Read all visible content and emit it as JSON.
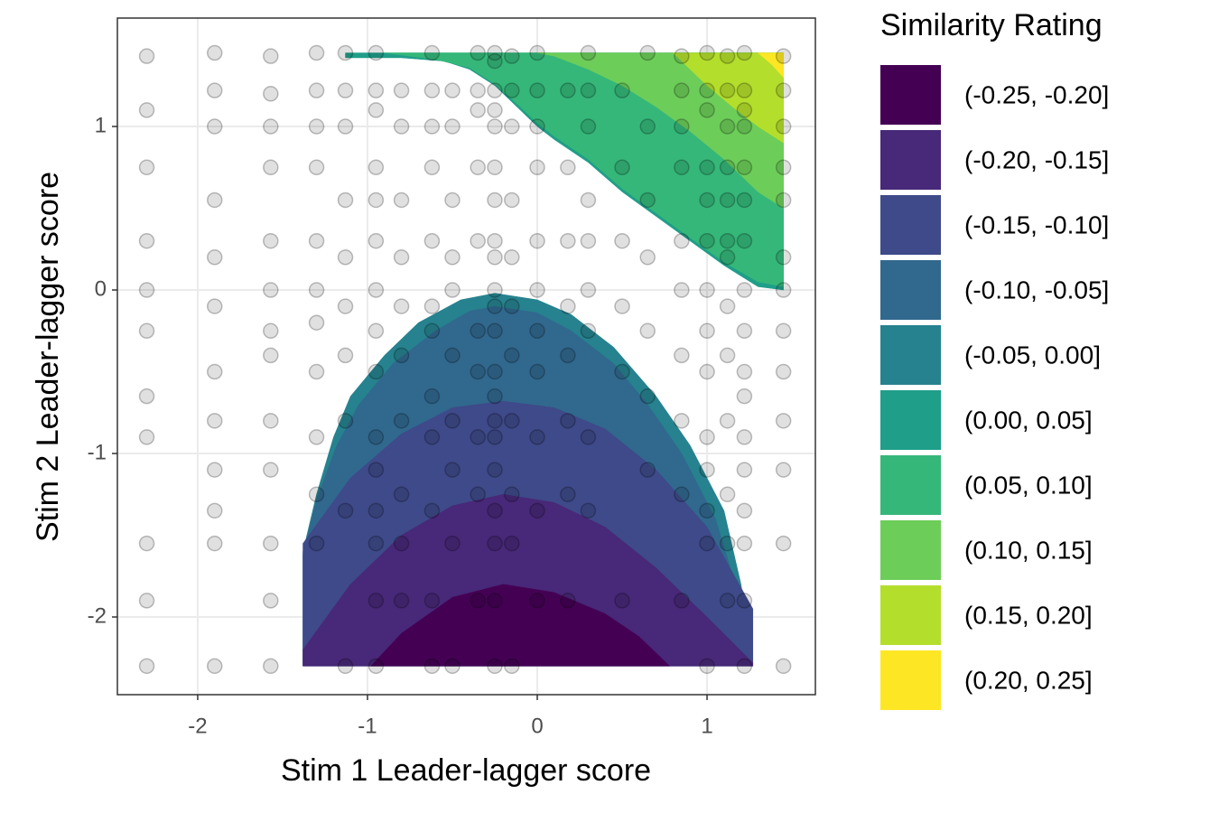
{
  "chart_data": {
    "type": "contour",
    "x_label": "Stim 1 Leader-lagger score",
    "y_label": "Stim 2 Leader-lagger score",
    "legend_title": "Similarity Rating",
    "xlim": [
      -2.473,
      1.638
    ],
    "ylim": [
      -2.475,
      1.663
    ],
    "xticks": [
      -2,
      -1,
      0,
      1
    ],
    "yticks": [
      -2,
      -1,
      0,
      1
    ],
    "grid": true,
    "point_color": "#000000",
    "series": [
      {
        "name": "(-0.25, -0.20]",
        "color": "#440154",
        "regions": [
          {
            "x": [
              -0.98,
              -0.8,
              -0.5,
              -0.2,
              0.1,
              0.4,
              0.6,
              0.78
            ],
            "y": [
              -2.3,
              -2.1,
              -1.88,
              -1.8,
              -1.85,
              -1.98,
              -2.12,
              -2.3
            ]
          }
        ]
      },
      {
        "name": "(-0.20, -0.15]",
        "color": "#482878",
        "regions": [
          {
            "x": [
              -1.38,
              -1.38,
              -1.1,
              -0.8,
              -0.5,
              -0.2,
              0.1,
              0.4,
              0.7,
              1.0,
              1.27,
              1.27
            ],
            "y": [
              -2.3,
              -2.2,
              -1.8,
              -1.5,
              -1.32,
              -1.25,
              -1.3,
              -1.45,
              -1.7,
              -2.0,
              -2.28,
              -2.3
            ]
          }
        ]
      },
      {
        "name": "(-0.15, -0.10]",
        "color": "#3E4A89",
        "regions": [
          {
            "x": [
              -1.38,
              -1.38,
              -1.1,
              -0.8,
              -0.5,
              -0.2,
              0.1,
              0.4,
              0.7,
              1.0,
              1.27,
              1.27
            ],
            "y": [
              -2.3,
              -1.55,
              -1.15,
              -0.88,
              -0.72,
              -0.68,
              -0.72,
              -0.85,
              -1.1,
              -1.45,
              -1.95,
              -2.3
            ]
          }
        ]
      },
      {
        "name": "(-0.10, -0.05]",
        "color": "#31688E",
        "regions": [
          {
            "x": [
              -1.38,
              -1.38,
              -1.3,
              -1.18,
              -1.05,
              -0.85,
              -0.6,
              -0.4,
              -0.25,
              0,
              0.2,
              0.45,
              0.65,
              0.85,
              1.05,
              1.18,
              1.27
            ],
            "y": [
              -2.3,
              -1.62,
              -1.28,
              -0.95,
              -0.7,
              -0.45,
              -0.25,
              -0.13,
              -0.1,
              -0.14,
              -0.25,
              -0.45,
              -0.7,
              -1.0,
              -1.4,
              -1.85,
              -2.3
            ]
          }
        ]
      },
      {
        "name": "(-0.05, 0.00]",
        "color": "#26828E",
        "regions": [
          {
            "x": [
              -1.38,
              -1.38,
              -1.3,
              -1.2,
              -1.1,
              -0.9,
              -0.7,
              -0.45,
              -0.25,
              0,
              0.2,
              0.45,
              0.7,
              0.9,
              1.1,
              1.2,
              1.27
            ],
            "y": [
              -2.3,
              -1.6,
              -1.25,
              -0.9,
              -0.65,
              -0.4,
              -0.2,
              -0.06,
              -0.02,
              -0.06,
              -0.15,
              -0.35,
              -0.65,
              -0.95,
              -1.35,
              -1.8,
              -2.3
            ]
          }
        ]
      },
      {
        "name": "(0.00, 0.05]",
        "color": "#1F9E89",
        "regions": [
          {
            "x": [
              -1.13,
              1.45,
              1.45,
              1.3,
              1.1,
              0.9,
              0.7,
              0.5,
              0.3,
              0.1,
              0,
              -0.1,
              -0.25,
              -0.4,
              -0.55,
              -0.8,
              -1.13
            ],
            "y": [
              1.45,
              1.45,
              0,
              0.02,
              0.15,
              0.3,
              0.45,
              0.6,
              0.78,
              0.92,
              1.0,
              1.1,
              1.25,
              1.35,
              1.4,
              1.42,
              1.42
            ]
          }
        ]
      },
      {
        "name": "(0.05, 0.10]",
        "color": "#35B779",
        "regions": [
          {
            "x": [
              -0.9,
              1.45,
              1.45,
              1.3,
              1.1,
              0.9,
              0.7,
              0.5,
              0.3,
              0.1,
              0,
              -0.1,
              -0.25,
              -0.4,
              -0.6
            ],
            "y": [
              1.45,
              1.45,
              0.02,
              0.05,
              0.17,
              0.32,
              0.47,
              0.62,
              0.8,
              0.94,
              1.02,
              1.12,
              1.26,
              1.36,
              1.41
            ]
          }
        ]
      },
      {
        "name": "(0.10, 0.15]",
        "color": "#6DCD59",
        "regions": [
          {
            "x": [
              0,
              1.45,
              1.45,
              1.3,
              1.1,
              0.9,
              0.7,
              0.5,
              0.3,
              0.1
            ],
            "y": [
              1.45,
              1.45,
              0.5,
              0.6,
              0.8,
              0.97,
              1.12,
              1.25,
              1.35,
              1.43
            ]
          }
        ]
      },
      {
        "name": "(0.15, 0.20]",
        "color": "#B4DE2C",
        "regions": [
          {
            "x": [
              0.8,
              1.45,
              1.45,
              1.3,
              1.15,
              1.0,
              0.9
            ],
            "y": [
              1.45,
              1.45,
              0.9,
              1.0,
              1.12,
              1.25,
              1.35
            ]
          }
        ]
      },
      {
        "name": "(0.20, 0.25]",
        "color": "#FDE725",
        "regions": [
          {
            "x": [
              1.3,
              1.45,
              1.45,
              1.38
            ],
            "y": [
              1.45,
              1.45,
              1.3,
              1.38
            ]
          }
        ]
      }
    ],
    "points": {
      "x": [
        -2.3,
        -2.3,
        -2.3,
        -2.3,
        -2.3,
        -2.3,
        -2.3,
        -2.3,
        -2.3,
        -2.3,
        -2.3,
        -1.9,
        -1.9,
        -1.9,
        -1.9,
        -1.9,
        -1.9,
        -1.9,
        -1.9,
        -1.9,
        -1.9,
        -1.9,
        -1.9,
        -1.57,
        -1.57,
        -1.57,
        -1.57,
        -1.57,
        -1.57,
        -1.57,
        -1.57,
        -1.57,
        -1.57,
        -1.57,
        -1.57,
        -1.57,
        -1.3,
        -1.3,
        -1.3,
        -1.3,
        -1.3,
        -1.3,
        -1.3,
        -1.3,
        -1.3,
        -1.3,
        -1.3,
        -1.13,
        -1.13,
        -1.13,
        -1.13,
        -1.13,
        -1.13,
        -1.13,
        -1.13,
        -1.13,
        -1.13,
        -0.95,
        -0.95,
        -0.95,
        -0.95,
        -0.95,
        -0.95,
        -0.95,
        -0.95,
        -0.95,
        -0.95,
        -0.95,
        -0.95,
        -0.95,
        -0.95,
        -0.95,
        -0.8,
        -0.8,
        -0.8,
        -0.8,
        -0.8,
        -0.8,
        -0.8,
        -0.8,
        -0.8,
        -0.8,
        -0.62,
        -0.62,
        -0.62,
        -0.62,
        -0.62,
        -0.62,
        -0.62,
        -0.62,
        -0.62,
        -0.62,
        -0.62,
        -0.62,
        -0.5,
        -0.5,
        -0.5,
        -0.5,
        -0.5,
        -0.5,
        -0.5,
        -0.5,
        -0.5,
        -0.5,
        -0.35,
        -0.35,
        -0.35,
        -0.35,
        -0.35,
        -0.35,
        -0.35,
        -0.35,
        -0.35,
        -0.35,
        -0.25,
        -0.25,
        -0.25,
        -0.25,
        -0.25,
        -0.25,
        -0.25,
        -0.25,
        -0.25,
        -0.25,
        -0.25,
        -0.25,
        -0.25,
        -0.25,
        -0.25,
        -0.25,
        -0.25,
        -0.25,
        -0.25,
        -0.25,
        -0.25,
        -0.15,
        -0.15,
        -0.15,
        -0.15,
        -0.15,
        -0.15,
        -0.15,
        -0.15,
        -0.15,
        -0.15,
        -0.15,
        0,
        0,
        0,
        0,
        0,
        0,
        0,
        0,
        0,
        0,
        0,
        0.18,
        0.18,
        0.18,
        0.18,
        0.18,
        0.18,
        0.18,
        0.18,
        0.3,
        0.3,
        0.3,
        0.3,
        0.3,
        0.3,
        0.3,
        0.3,
        0.3,
        0.5,
        0.5,
        0.5,
        0.5,
        0.5,
        0.5,
        0.65,
        0.65,
        0.65,
        0.65,
        0.65,
        0.65,
        0.65,
        0.85,
        0.85,
        0.85,
        0.85,
        0.85,
        0.85,
        0.85,
        0.85,
        0.85,
        0.85,
        1.0,
        1.0,
        1.0,
        1.0,
        1.0,
        1.0,
        1.0,
        1.0,
        1.0,
        1.0,
        1.0,
        1.0,
        1.0,
        1.0,
        1.12,
        1.12,
        1.12,
        1.12,
        1.12,
        1.12,
        1.12,
        1.12,
        1.12,
        1.12,
        1.12,
        1.12,
        1.12,
        1.22,
        1.22,
        1.22,
        1.22,
        1.22,
        1.22,
        1.22,
        1.22,
        1.22,
        1.22,
        1.22,
        1.22,
        1.22,
        1.22,
        1.22,
        1.22,
        1.22,
        1.45,
        1.45,
        1.45,
        1.45,
        1.45,
        1.45,
        1.45,
        1.45,
        1.45,
        1.45,
        1.45,
        1.45,
        1.45
      ],
      "y": [
        1.43,
        1.1,
        0.75,
        0.3,
        0,
        -0.25,
        -0.65,
        -0.9,
        -1.55,
        -1.9,
        -2.3,
        1.45,
        1.22,
        1.0,
        0.55,
        0.2,
        -0.1,
        -0.5,
        -0.8,
        -1.1,
        -1.35,
        -1.55,
        -2.3,
        1.43,
        1.2,
        1.0,
        0.75,
        0.3,
        0,
        -0.25,
        -0.4,
        -0.8,
        -1.1,
        -1.55,
        -1.9,
        -2.3,
        1.45,
        1.22,
        1.0,
        0.75,
        0.3,
        0,
        -0.2,
        -0.5,
        -0.9,
        -1.25,
        -1.55,
        1.45,
        1.22,
        1.0,
        0.55,
        0.2,
        -0.1,
        -0.4,
        -0.8,
        -1.35,
        -2.3,
        1.45,
        1.22,
        1.1,
        0.75,
        0.55,
        0.3,
        0,
        -0.25,
        -0.5,
        -0.9,
        -1.1,
        -1.35,
        -1.55,
        -1.9,
        -2.3,
        1.22,
        1.0,
        0.55,
        0.2,
        -0.1,
        -0.4,
        -0.8,
        -1.25,
        -1.55,
        -1.9,
        1.45,
        1.22,
        1.0,
        0.75,
        0.3,
        -0.1,
        -0.25,
        -0.65,
        -0.9,
        -1.35,
        -1.9,
        -2.3,
        1.22,
        1.0,
        0.55,
        0.2,
        0,
        -0.4,
        -0.8,
        -1.1,
        -1.55,
        -2.3,
        1.45,
        1.22,
        1.1,
        0.75,
        0.3,
        -0.25,
        -0.5,
        -0.9,
        -1.25,
        -1.9,
        1.45,
        1.4,
        1.22,
        1.1,
        1.0,
        0.75,
        0.55,
        0.3,
        0.2,
        0,
        -0.1,
        -0.25,
        -0.5,
        -0.65,
        -0.8,
        -0.9,
        -1.1,
        -1.35,
        -1.55,
        -1.9,
        -2.3,
        1.43,
        1.22,
        1.0,
        0.55,
        0.2,
        -0.1,
        -0.4,
        -0.8,
        -1.25,
        -1.55,
        -2.3,
        1.45,
        1.22,
        1.0,
        0.75,
        0.3,
        0,
        -0.25,
        -0.5,
        -0.9,
        -1.35,
        -1.9,
        1.22,
        0.75,
        0.3,
        -0.1,
        -0.4,
        -0.8,
        -1.25,
        -1.9,
        1.45,
        1.22,
        1.0,
        0.55,
        0.3,
        0,
        -0.25,
        -0.9,
        -1.35,
        1.22,
        0.75,
        0.3,
        -0.1,
        -0.5,
        -1.9,
        1.45,
        1.0,
        0.55,
        0.2,
        -0.25,
        -0.65,
        -1.1,
        1.43,
        1.22,
        1.0,
        0.75,
        0.3,
        0,
        -0.4,
        -0.8,
        -1.25,
        -1.9,
        1.45,
        1.22,
        1.1,
        0.75,
        0.55,
        0.3,
        0,
        -0.25,
        -0.5,
        -0.9,
        -1.1,
        -1.35,
        -1.55,
        -2.3,
        1.43,
        1.22,
        1.0,
        0.75,
        0.55,
        0.3,
        0.2,
        -0.1,
        -0.4,
        -0.8,
        -1.25,
        -1.55,
        -1.9,
        1.45,
        1.22,
        1.1,
        1.0,
        0.75,
        0.55,
        0.3,
        0,
        -0.25,
        -0.5,
        -0.65,
        -0.9,
        -1.1,
        -1.35,
        -1.55,
        -1.9,
        -2.3,
        1.43,
        1.22,
        1.0,
        0.75,
        0.55,
        0.2,
        0,
        -0.25,
        -0.5,
        -0.8,
        -1.1,
        -1.55,
        -2.3
      ]
    }
  }
}
